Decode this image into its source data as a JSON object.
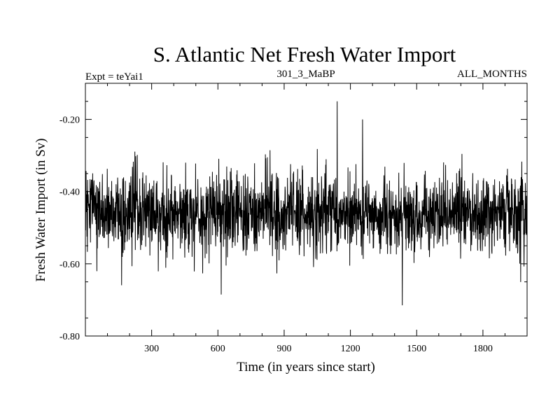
{
  "chart_data": {
    "type": "line",
    "title": "S. Atlantic Net Fresh Water Import",
    "meta_left": "Expt = teYai1",
    "meta_center": "301_3_MaBP",
    "meta_right": "ALL_MONTHS",
    "xlabel": "Time (in years since start)",
    "ylabel": "Fresh Water Import (in Sv)",
    "xlim": [
      0,
      2000
    ],
    "ylim": [
      -0.8,
      -0.1
    ],
    "x_ticks": [
      300,
      600,
      900,
      1200,
      1500,
      1800
    ],
    "x_tick_labels": [
      "300",
      "600",
      "900",
      "1200",
      "1500",
      "1800"
    ],
    "y_ticks": [
      -0.2,
      -0.4,
      -0.6,
      -0.8
    ],
    "y_tick_labels": [
      "-0.20",
      "-0.40",
      "-0.60",
      "-0.80"
    ],
    "grid": false,
    "series": [
      {
        "x_start": 1,
        "x_step": 1,
        "n_points": 2000,
        "mean": -0.46,
        "std": 0.055,
        "min": -0.715,
        "max": -0.15,
        "notable_points": [
          {
            "x": 1140,
            "y": -0.15
          },
          {
            "x": 1435,
            "y": -0.715
          },
          {
            "x": 615,
            "y": -0.685
          },
          {
            "x": 1255,
            "y": -0.2
          }
        ]
      }
    ]
  }
}
